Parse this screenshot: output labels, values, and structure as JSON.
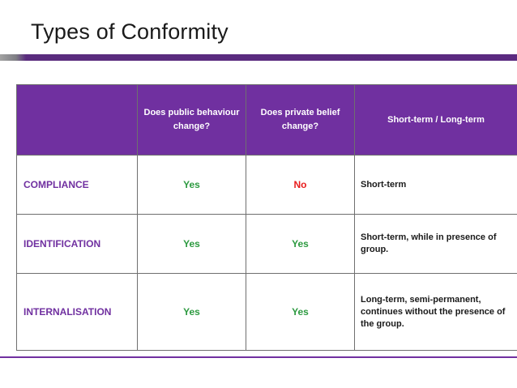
{
  "slide": {
    "title": "Types of Conformity"
  },
  "table": {
    "headers": [
      "",
      "Does public behaviour change?",
      "Does private belief change?",
      "Short-term / Long-term"
    ],
    "rows": [
      {
        "type": "COMPLIANCE",
        "public_change": "Yes",
        "private_change": "No",
        "duration": "Short-term"
      },
      {
        "type": "IDENTIFICATION",
        "public_change": "Yes",
        "private_change": "Yes",
        "duration": "Short-term, while in presence of group."
      },
      {
        "type": "INTERNALISATION",
        "public_change": "Yes",
        "private_change": "Yes",
        "duration": "Long-term, semi-permanent, continues without the presence of the group."
      }
    ]
  },
  "colors": {
    "accent": "#7030a0",
    "yes": "#2d9a40",
    "no": "#e81c1c"
  }
}
